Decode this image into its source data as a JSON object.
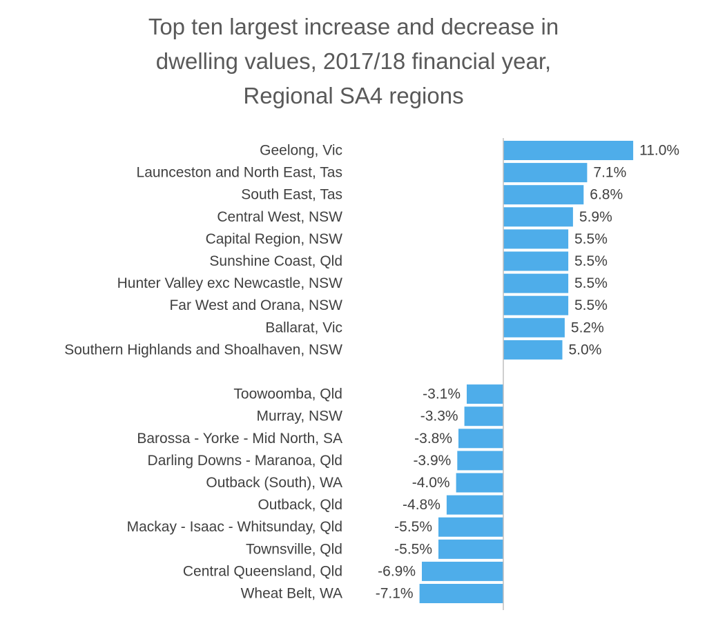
{
  "chart_data": {
    "type": "bar",
    "orientation": "horizontal",
    "title_lines": [
      "Top ten largest increase and decrease in",
      "dwelling values, 2017/18 financial year,",
      "Regional SA4 regions"
    ],
    "bar_color": "#4EADEA",
    "axis_color": "#BFBFBF",
    "categories": [
      "Geelong, Vic",
      "Launceston and North East, Tas",
      "South East, Tas",
      "Central West, NSW",
      "Capital Region, NSW",
      "Sunshine Coast, Qld",
      "Hunter Valley exc Newcastle, NSW",
      "Far West and Orana, NSW",
      "Ballarat, Vic",
      "Southern Highlands and Shoalhaven, NSW",
      "",
      "Toowoomba, Qld",
      "Murray, NSW",
      "Barossa - Yorke - Mid North, SA",
      "Darling Downs - Maranoa, Qld",
      "Outback (South), WA",
      "Outback, Qld",
      "Mackay - Isaac - Whitsunday, Qld",
      "Townsville, Qld",
      "Central Queensland, Qld",
      "Wheat Belt, WA"
    ],
    "values": [
      11.0,
      7.1,
      6.8,
      5.9,
      5.5,
      5.5,
      5.5,
      5.5,
      5.2,
      5.0,
      null,
      -3.1,
      -3.3,
      -3.8,
      -3.9,
      -4.0,
      -4.8,
      -5.5,
      -5.5,
      -6.9,
      -7.1
    ],
    "value_labels": [
      "11.0%",
      "7.1%",
      "6.8%",
      "5.9%",
      "5.5%",
      "5.5%",
      "5.5%",
      "5.5%",
      "5.2%",
      "5.0%",
      "",
      "-3.1%",
      "-3.3%",
      "-3.8%",
      "-3.9%",
      "-4.0%",
      "-4.8%",
      "-5.5%",
      "-5.5%",
      "-6.9%",
      "-7.1%"
    ],
    "xlim": [
      -7.1,
      11.0
    ],
    "gridlines": false,
    "legend": "none"
  }
}
